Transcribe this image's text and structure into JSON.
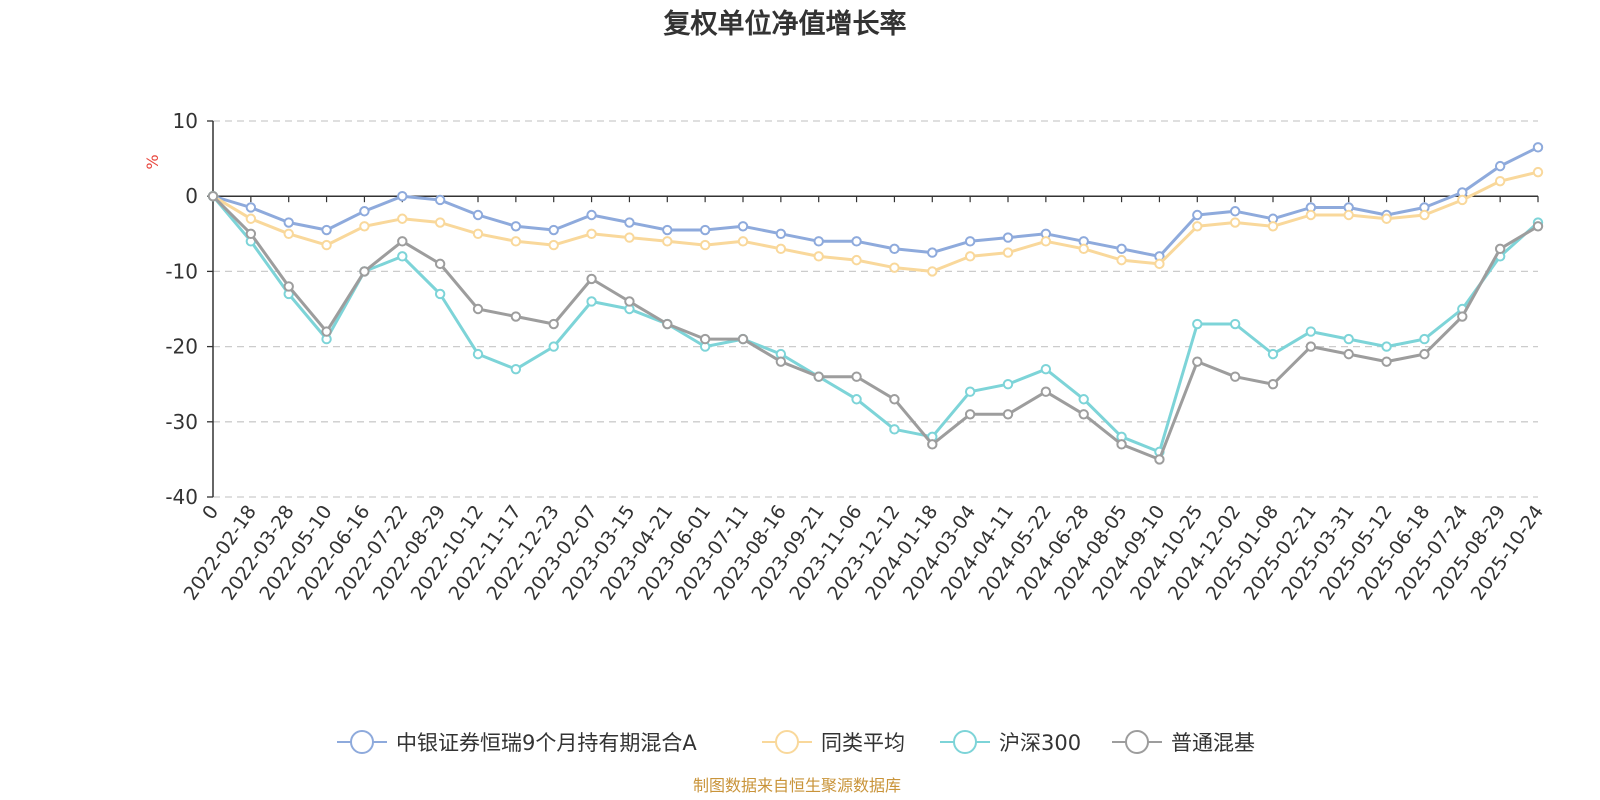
{
  "chart_data": {
    "type": "line",
    "title": "复权单位净值增长率",
    "ylabel": "%",
    "ylim": [
      -40,
      10
    ],
    "yticks": [
      10,
      0,
      -10,
      -20,
      -30,
      -40
    ],
    "x_ticks": [
      "0",
      "2022-02-18",
      "2022-03-28",
      "2022-05-10",
      "2022-06-16",
      "2022-07-22",
      "2022-08-29",
      "2022-10-12",
      "2022-11-17",
      "2022-12-23",
      "2023-02-07",
      "2023-03-15",
      "2023-04-21",
      "2023-06-01",
      "2023-07-11",
      "2023-08-16",
      "2023-09-21",
      "2023-11-06",
      "2023-12-12",
      "2024-01-18",
      "2024-03-04",
      "2024-04-11",
      "2024-05-22",
      "2024-06-28",
      "2024-08-05",
      "2024-09-10",
      "2024-10-25",
      "2024-12-02",
      "2025-01-08",
      "2025-02-21",
      "2025-03-31",
      "2025-05-12",
      "2025-06-18",
      "2025-07-24",
      "2025-08-29",
      "2025-10-24"
    ],
    "source": "制图数据来自恒生聚源数据库",
    "series": [
      {
        "name": "中银证券恒瑞9个月持有期混合A",
        "color": "#8eaadc",
        "values": [
          0,
          -1.5,
          -3.5,
          -4.5,
          -2,
          0,
          -0.5,
          -2.5,
          -4,
          -4.5,
          -2.5,
          -3.5,
          -4.5,
          -4.5,
          -4,
          -5,
          -6,
          -6,
          -7,
          -7.5,
          -6,
          -5.5,
          -5,
          -6,
          -7,
          -8,
          -2.5,
          -2,
          -3,
          -1.5,
          -1.5,
          -2.5,
          -1.5,
          0.5,
          4,
          6.5
        ]
      },
      {
        "name": "同类平均",
        "color": "#f9d89b",
        "values": [
          0,
          -3,
          -5,
          -6.5,
          -4,
          -3,
          -3.5,
          -5,
          -6,
          -6.5,
          -5,
          -5.5,
          -6,
          -6.5,
          -6,
          -7,
          -8,
          -8.5,
          -9.5,
          -10,
          -8,
          -7.5,
          -6,
          -7,
          -8.5,
          -9,
          -4,
          -3.5,
          -4,
          -2.5,
          -2.5,
          -3,
          -2.5,
          -0.5,
          2,
          3.2
        ]
      },
      {
        "name": "沪深300",
        "color": "#7dd4d8",
        "values": [
          0,
          -6,
          -13,
          -19,
          -10,
          -8,
          -13,
          -21,
          -23,
          -20,
          -14,
          -15,
          -17,
          -20,
          -19,
          -21,
          -24,
          -27,
          -31,
          -32,
          -26,
          -25,
          -23,
          -27,
          -32,
          -34,
          -17,
          -17,
          -21,
          -18,
          -19,
          -20,
          -19,
          -15,
          -8,
          -3.5
        ]
      },
      {
        "name": "普通混基",
        "color": "#9d9d9d",
        "values": [
          0,
          -5,
          -12,
          -18,
          -10,
          -6,
          -9,
          -15,
          -16,
          -17,
          -11,
          -14,
          -17,
          -19,
          -19,
          -22,
          -24,
          -24,
          -27,
          -33,
          -29,
          -29,
          -26,
          -29,
          -33,
          -35,
          -22,
          -24,
          -25,
          -20,
          -21,
          -22,
          -21,
          -16,
          -7,
          -4
        ]
      }
    ]
  }
}
